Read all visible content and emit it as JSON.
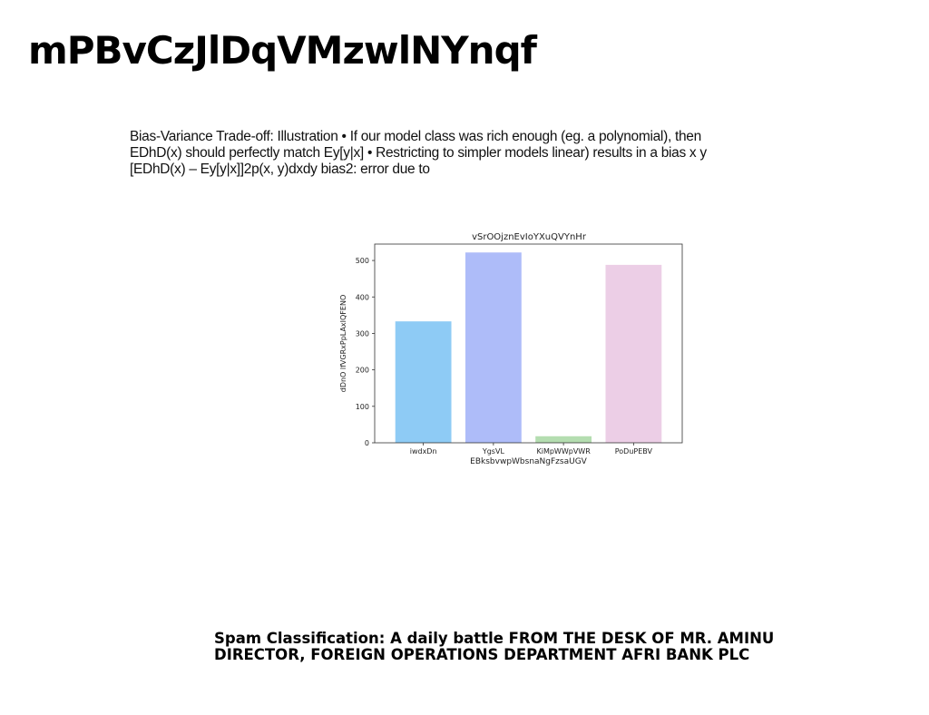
{
  "page": {
    "title": "mPBvCzJlDqVMzwlNYnqf",
    "body_text": "Bias-Variance Trade-off: Illustration • If our model class was rich enough (eg. a polynomial), then EDhD(x) should perfectly match Ey[y|x] • Restricting to simpler models linear) results in a bias  x  y [EDhD(x) – Ey[y|x]]2p(x, y)dxdy    bias2: error due to",
    "caption": "Spam Classification: A daily battle FROM THE DESK OF MR. AMINU DIRECTOR, FOREIGN OPERATIONS DEPARTMENT AFRI BANK PLC"
  },
  "chart_data": {
    "type": "bar",
    "title": "vSrOOjznEvIoYXuQVYnHr",
    "xlabel": "EBksbvwpWbsnaNgFzsaUGV",
    "ylabel": "dDnO lfVGRxPpLAxIQFENO",
    "categories": [
      "iwdxDn",
      "YgsVL",
      "KiMpWWpVWR",
      "PoDuPEBV"
    ],
    "values": [
      333,
      522,
      18,
      488
    ],
    "colors": [
      "#8ecbf5",
      "#aebcf9",
      "#b4ddb0",
      "#eccee6"
    ],
    "ylim": [
      0,
      545
    ],
    "yticks": [
      0,
      100,
      200,
      300,
      400,
      500
    ],
    "grid": false
  }
}
